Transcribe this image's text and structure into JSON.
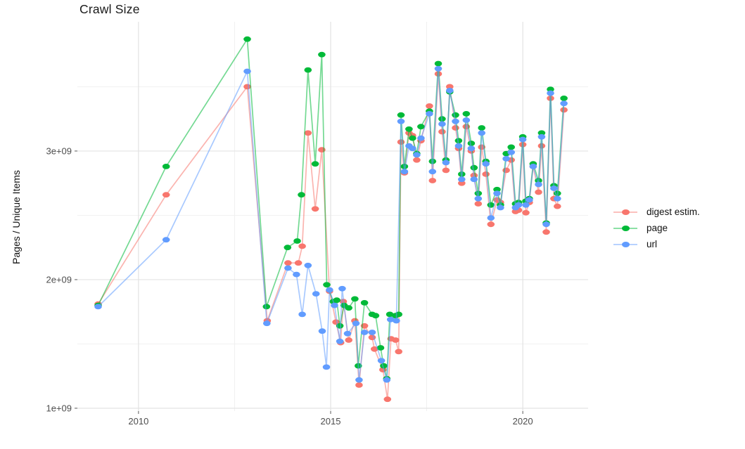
{
  "title": "Crawl Size",
  "y_axis_title": "Pages / Unique Items",
  "legend": {
    "position": "right",
    "items": [
      {
        "label": "digest estim.",
        "color": "#F8766D"
      },
      {
        "label": "page",
        "color": "#00BA38"
      },
      {
        "label": "url",
        "color": "#619CFF"
      }
    ]
  },
  "chart_data": {
    "type": "line",
    "title": "Crawl Size",
    "xlabel": "",
    "ylabel": "Pages / Unique Items",
    "xlim": [
      2008.41,
      2021.7
    ],
    "ylim": [
      978000000,
      4005000000
    ],
    "x_ticks": [
      2010,
      2015,
      2020
    ],
    "x_tick_labels": [
      "2010",
      "2015",
      "2020"
    ],
    "x_minor_ticks": [
      2012.5,
      2017.5
    ],
    "y_ticks": [
      1000000000.0,
      2000000000.0,
      3000000000.0
    ],
    "y_tick_labels": [
      "1e+09",
      "2e+09",
      "3e+09"
    ],
    "y_minor_ticks": [
      1500000000.0,
      2500000000.0,
      3500000000.0
    ],
    "grid": true,
    "legend_position": "right",
    "marker": "ellipse",
    "series": [
      {
        "name": "digest estim.",
        "color": "#F8766D",
        "points": [
          [
            2008.95,
            1810000000.0
          ],
          [
            2010.72,
            2660000000.0
          ],
          [
            2012.83,
            3500000000.0
          ],
          [
            2013.35,
            1680000000.0
          ],
          [
            2013.89,
            2130000000.0
          ],
          [
            2014.16,
            2130000000.0
          ],
          [
            2014.26,
            2260000000.0
          ],
          [
            2014.41,
            3140000000.0
          ],
          [
            2014.6,
            2550000000.0
          ],
          [
            2014.77,
            3010000000.0
          ],
          [
            2014.97,
            1910000000.0
          ],
          [
            2015.14,
            1670000000.0
          ],
          [
            2015.26,
            1510000000.0
          ],
          [
            2015.33,
            1830000000.0
          ],
          [
            2015.47,
            1530000000.0
          ],
          [
            2015.63,
            1680000000.0
          ],
          [
            2015.74,
            1180000000.0
          ],
          [
            2015.88,
            1640000000.0
          ],
          [
            2016.08,
            1550000000.0
          ],
          [
            2016.14,
            1460000000.0
          ],
          [
            2016.36,
            1300000000.0
          ],
          [
            2016.48,
            1070000000.0
          ],
          [
            2016.57,
            1540000000.0
          ],
          [
            2016.69,
            1530000000.0
          ],
          [
            2016.77,
            1440000000.0
          ],
          [
            2016.83,
            3070000000.0
          ],
          [
            2016.92,
            2830000000.0
          ],
          [
            2017.04,
            3140000000.0
          ],
          [
            2017.13,
            3120000000.0
          ],
          [
            2017.24,
            2930000000.0
          ],
          [
            2017.35,
            3080000000.0
          ],
          [
            2017.57,
            3350000000.0
          ],
          [
            2017.65,
            2770000000.0
          ],
          [
            2017.8,
            3600000000.0
          ],
          [
            2017.9,
            3150000000.0
          ],
          [
            2018.0,
            2850000000.0
          ],
          [
            2018.1,
            3500000000.0
          ],
          [
            2018.25,
            3180000000.0
          ],
          [
            2018.33,
            3020000000.0
          ],
          [
            2018.41,
            2750000000.0
          ],
          [
            2018.53,
            3190000000.0
          ],
          [
            2018.66,
            3000000000.0
          ],
          [
            2018.73,
            2810000000.0
          ],
          [
            2018.84,
            2590000000.0
          ],
          [
            2018.93,
            3030000000.0
          ],
          [
            2019.04,
            2820000000.0
          ],
          [
            2019.17,
            2430000000.0
          ],
          [
            2019.33,
            2620000000.0
          ],
          [
            2019.42,
            2600000000.0
          ],
          [
            2019.57,
            2850000000.0
          ],
          [
            2019.7,
            2930000000.0
          ],
          [
            2019.81,
            2530000000.0
          ],
          [
            2019.89,
            2540000000.0
          ],
          [
            2020.0,
            3050000000.0
          ],
          [
            2020.08,
            2520000000.0
          ],
          [
            2020.17,
            2600000000.0
          ],
          [
            2020.27,
            2880000000.0
          ],
          [
            2020.41,
            2680000000.0
          ],
          [
            2020.49,
            3040000000.0
          ],
          [
            2020.61,
            2370000000.0
          ],
          [
            2020.72,
            3410000000.0
          ],
          [
            2020.81,
            2630000000.0
          ],
          [
            2020.9,
            2570000000.0
          ],
          [
            2021.07,
            3320000000.0
          ]
        ]
      },
      {
        "name": "page",
        "color": "#00BA38",
        "points": [
          [
            2008.95,
            1800000000.0
          ],
          [
            2010.72,
            2880000000.0
          ],
          [
            2012.83,
            3870000000.0
          ],
          [
            2013.33,
            1790000000.0
          ],
          [
            2013.88,
            2250000000.0
          ],
          [
            2014.13,
            2300000000.0
          ],
          [
            2014.24,
            2660000000.0
          ],
          [
            2014.41,
            3630000000.0
          ],
          [
            2014.6,
            2900000000.0
          ],
          [
            2014.77,
            3750000000.0
          ],
          [
            2014.9,
            1960000000.0
          ],
          [
            2015.07,
            1830000000.0
          ],
          [
            2015.16,
            1840000000.0
          ],
          [
            2015.24,
            1640000000.0
          ],
          [
            2015.35,
            1800000000.0
          ],
          [
            2015.47,
            1780000000.0
          ],
          [
            2015.63,
            1850000000.0
          ],
          [
            2015.72,
            1330000000.0
          ],
          [
            2015.88,
            1820000000.0
          ],
          [
            2016.08,
            1730000000.0
          ],
          [
            2016.17,
            1720000000.0
          ],
          [
            2016.3,
            1470000000.0
          ],
          [
            2016.38,
            1330000000.0
          ],
          [
            2016.46,
            1230000000.0
          ],
          [
            2016.54,
            1730000000.0
          ],
          [
            2016.69,
            1720000000.0
          ],
          [
            2016.77,
            1730000000.0
          ],
          [
            2016.83,
            3280000000.0
          ],
          [
            2016.92,
            2880000000.0
          ],
          [
            2017.04,
            3170000000.0
          ],
          [
            2017.13,
            3100000000.0
          ],
          [
            2017.24,
            2980000000.0
          ],
          [
            2017.35,
            3190000000.0
          ],
          [
            2017.57,
            3310000000.0
          ],
          [
            2017.65,
            2920000000.0
          ],
          [
            2017.8,
            3680000000.0
          ],
          [
            2017.9,
            3250000000.0
          ],
          [
            2018.0,
            2930000000.0
          ],
          [
            2018.1,
            3460000000.0
          ],
          [
            2018.25,
            3280000000.0
          ],
          [
            2018.33,
            3080000000.0
          ],
          [
            2018.41,
            2820000000.0
          ],
          [
            2018.53,
            3290000000.0
          ],
          [
            2018.66,
            3060000000.0
          ],
          [
            2018.73,
            2870000000.0
          ],
          [
            2018.84,
            2670000000.0
          ],
          [
            2018.93,
            3180000000.0
          ],
          [
            2019.04,
            2920000000.0
          ],
          [
            2019.17,
            2580000000.0
          ],
          [
            2019.33,
            2700000000.0
          ],
          [
            2019.42,
            2580000000.0
          ],
          [
            2019.57,
            2980000000.0
          ],
          [
            2019.7,
            3030000000.0
          ],
          [
            2019.81,
            2590000000.0
          ],
          [
            2019.89,
            2600000000.0
          ],
          [
            2020.0,
            3110000000.0
          ],
          [
            2020.08,
            2610000000.0
          ],
          [
            2020.17,
            2630000000.0
          ],
          [
            2020.27,
            2900000000.0
          ],
          [
            2020.41,
            2770000000.0
          ],
          [
            2020.49,
            3140000000.0
          ],
          [
            2020.61,
            2440000000.0
          ],
          [
            2020.72,
            3480000000.0
          ],
          [
            2020.81,
            2730000000.0
          ],
          [
            2020.9,
            2670000000.0
          ],
          [
            2021.07,
            3410000000.0
          ]
        ]
      },
      {
        "name": "url",
        "color": "#619CFF",
        "points": [
          [
            2008.95,
            1790000000.0
          ],
          [
            2010.72,
            2310000000.0
          ],
          [
            2012.83,
            3620000000.0
          ],
          [
            2013.34,
            1660000000.0
          ],
          [
            2013.89,
            2090000000.0
          ],
          [
            2014.11,
            2040000000.0
          ],
          [
            2014.26,
            1730000000.0
          ],
          [
            2014.41,
            2110000000.0
          ],
          [
            2014.62,
            1890000000.0
          ],
          [
            2014.78,
            1600000000.0
          ],
          [
            2014.89,
            1320000000.0
          ],
          [
            2014.97,
            1920000000.0
          ],
          [
            2015.1,
            1800000000.0
          ],
          [
            2015.24,
            1520000000.0
          ],
          [
            2015.3,
            1930000000.0
          ],
          [
            2015.44,
            1580000000.0
          ],
          [
            2015.66,
            1660000000.0
          ],
          [
            2015.74,
            1220000000.0
          ],
          [
            2015.88,
            1590000000.0
          ],
          [
            2016.08,
            1590000000.0
          ],
          [
            2016.32,
            1370000000.0
          ],
          [
            2016.46,
            1220000000.0
          ],
          [
            2016.56,
            1690000000.0
          ],
          [
            2016.71,
            1680000000.0
          ],
          [
            2016.83,
            3230000000.0
          ],
          [
            2016.92,
            2840000000.0
          ],
          [
            2017.04,
            3040000000.0
          ],
          [
            2017.13,
            3020000000.0
          ],
          [
            2017.24,
            2970000000.0
          ],
          [
            2017.35,
            3100000000.0
          ],
          [
            2017.57,
            3290000000.0
          ],
          [
            2017.65,
            2840000000.0
          ],
          [
            2017.8,
            3640000000.0
          ],
          [
            2017.9,
            3210000000.0
          ],
          [
            2018.0,
            2910000000.0
          ],
          [
            2018.1,
            3470000000.0
          ],
          [
            2018.25,
            3230000000.0
          ],
          [
            2018.33,
            3040000000.0
          ],
          [
            2018.41,
            2780000000.0
          ],
          [
            2018.53,
            3240000000.0
          ],
          [
            2018.66,
            3020000000.0
          ],
          [
            2018.73,
            2780000000.0
          ],
          [
            2018.84,
            2630000000.0
          ],
          [
            2018.93,
            3140000000.0
          ],
          [
            2019.04,
            2900000000.0
          ],
          [
            2019.17,
            2480000000.0
          ],
          [
            2019.33,
            2670000000.0
          ],
          [
            2019.42,
            2560000000.0
          ],
          [
            2019.57,
            2940000000.0
          ],
          [
            2019.7,
            2990000000.0
          ],
          [
            2019.81,
            2560000000.0
          ],
          [
            2019.89,
            2580000000.0
          ],
          [
            2020.0,
            3090000000.0
          ],
          [
            2020.08,
            2580000000.0
          ],
          [
            2020.17,
            2620000000.0
          ],
          [
            2020.27,
            2880000000.0
          ],
          [
            2020.41,
            2740000000.0
          ],
          [
            2020.49,
            3110000000.0
          ],
          [
            2020.61,
            2430000000.0
          ],
          [
            2020.72,
            3450000000.0
          ],
          [
            2020.81,
            2710000000.0
          ],
          [
            2020.9,
            2630000000.0
          ],
          [
            2021.07,
            3370000000.0
          ]
        ]
      }
    ]
  }
}
